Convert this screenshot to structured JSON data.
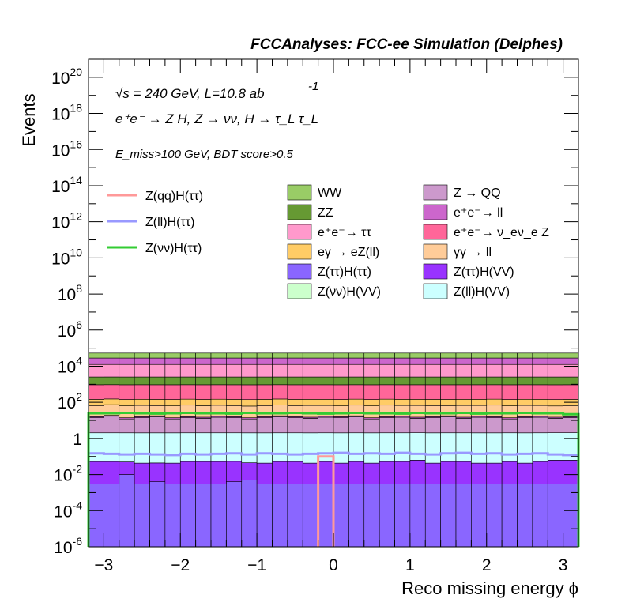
{
  "header": {
    "title": "FCCAnalyses: FCC-ee Simulation (Delphes)"
  },
  "annotations": {
    "line1": "√s = 240 GeV, L=10.8 ab",
    "line1_exp": "-1",
    "line2": "e⁺e⁻ → Z H, Z → νν, H → τ_L τ_L",
    "line3": "E_miss>100 GeV, BDT score>0.5"
  },
  "chart_data": {
    "type": "bar",
    "stacked": true,
    "histogram": true,
    "xlabel": "Reco missing energy ϕ",
    "ylabel": "Events",
    "xlim": [
      -3.2,
      3.2
    ],
    "ylim": [
      1e-06,
      1e+21
    ],
    "yscale": "log",
    "grid": false,
    "legend_position": "middle",
    "x_ticks": [
      "−3",
      "−2",
      "−1",
      "0",
      "1",
      "2",
      "3"
    ],
    "y_ticks": [
      "10^-6",
      "10^-4",
      "10^-2",
      "1",
      "10^2",
      "10^4",
      "10^6",
      "10^8",
      "10^10",
      "10^12",
      "10^14",
      "10^16",
      "10^18",
      "10^20"
    ],
    "bins": 32,
    "stack_layers": [
      {
        "name": "Z(ττ)H(ττ)",
        "color": "#8a66ff",
        "values": [
          0.003,
          0.003,
          0.01,
          0.003,
          0.004,
          0.003,
          0.003,
          0.003,
          0.003,
          0.004,
          0.005,
          0.003,
          0.003,
          0.003,
          0.003,
          0.003,
          0.003,
          0.003,
          0.003,
          0.003,
          0.003,
          0.003,
          0.003,
          0.003,
          0.003,
          0.003,
          0.003,
          0.003,
          0.003,
          0.003,
          0.003,
          0.003
        ]
      },
      {
        "name": "Z(ττ)H(VV)",
        "color": "#9933ff",
        "values": [
          0.05,
          0.05,
          0.04,
          0.04,
          0.04,
          0.04,
          0.05,
          0.05,
          0.05,
          0.05,
          0.04,
          0.04,
          0.05,
          0.05,
          0.04,
          0.05,
          0.04,
          0.05,
          0.04,
          0.05,
          0.05,
          0.06,
          0.04,
          0.05,
          0.05,
          0.04,
          0.04,
          0.05,
          0.04,
          0.05,
          0.06,
          0.06
        ]
      },
      {
        "name": "Z(ll)H(VV)",
        "color": "#ccffff",
        "values": [
          2,
          2,
          2,
          2,
          2,
          2,
          2,
          2,
          2,
          2,
          2,
          2,
          2,
          2,
          2,
          2,
          2,
          2,
          2,
          2,
          2,
          2,
          2,
          2,
          2,
          2,
          2,
          2,
          2,
          2,
          2,
          2
        ]
      },
      {
        "name": "Z → QQ",
        "color": "#cc99cc",
        "values": [
          12,
          15,
          10,
          12,
          14,
          10,
          12,
          11,
          13,
          12,
          10,
          12,
          14,
          12,
          11,
          13,
          12,
          14,
          10,
          12,
          13,
          11,
          12,
          14,
          11,
          13,
          12,
          10,
          12,
          13,
          11,
          12
        ]
      },
      {
        "name": "e⁺e⁻ → ll",
        "color": "#cc66cc",
        "values": [
          2,
          2,
          2,
          2,
          2,
          2,
          2,
          2,
          2,
          2,
          2,
          2,
          2,
          2,
          2,
          2,
          2,
          2,
          2,
          2,
          2,
          2,
          2,
          2,
          2,
          2,
          2,
          2,
          2,
          2,
          2,
          2
        ]
      },
      {
        "name": "γγ → ll",
        "color": "#ffcc99",
        "values": [
          50,
          55,
          50,
          52,
          48,
          50,
          54,
          50,
          52,
          50,
          48,
          50,
          55,
          50,
          52,
          50,
          48,
          52,
          50,
          54,
          50,
          52,
          50,
          48,
          52,
          50,
          54,
          50,
          52,
          50,
          48,
          50
        ]
      },
      {
        "name": "eγ → eZ(ll)",
        "color": "#ffcc66",
        "values": [
          80,
          80,
          80,
          80,
          80,
          80,
          80,
          80,
          80,
          80,
          80,
          80,
          80,
          80,
          80,
          80,
          80,
          80,
          80,
          80,
          80,
          80,
          80,
          80,
          80,
          80,
          80,
          80,
          80,
          80,
          80,
          80
        ]
      },
      {
        "name": "e⁺e⁻ → ν_eν_e Z",
        "color": "#ff6699",
        "values": [
          800,
          800,
          800,
          800,
          800,
          800,
          800,
          800,
          800,
          800,
          800,
          800,
          800,
          800,
          800,
          800,
          800,
          800,
          800,
          800,
          800,
          800,
          800,
          800,
          800,
          800,
          800,
          800,
          800,
          800,
          800,
          800
        ]
      },
      {
        "name": "ZZ",
        "color": "#669933",
        "values": [
          1600,
          1600,
          1600,
          1600,
          1600,
          1600,
          1600,
          1600,
          1600,
          1600,
          1600,
          1600,
          1600,
          1600,
          1600,
          1600,
          1600,
          1600,
          1600,
          1600,
          1600,
          1600,
          1600,
          1600,
          1600,
          1600,
          1600,
          1600,
          1600,
          1600,
          1600,
          1600
        ]
      },
      {
        "name": "e⁺e⁻ → ττ",
        "color": "#ff99cc",
        "values": [
          10000,
          10000,
          10000,
          10000,
          10000,
          10000,
          10000,
          10000,
          10000,
          10000,
          10000,
          10000,
          10000,
          10000,
          10000,
          10000,
          10000,
          10000,
          10000,
          10000,
          10000,
          10000,
          10000,
          10000,
          10000,
          10000,
          10000,
          10000,
          10000,
          10000,
          10000,
          10000
        ]
      },
      {
        "name": "e⁺e⁻ → ll",
        "color": "#cc66cc",
        "values": [
          16000,
          16000,
          16000,
          16000,
          16000,
          16000,
          16000,
          16000,
          16000,
          16000,
          16000,
          16000,
          16000,
          16000,
          16000,
          16000,
          16000,
          16000,
          16000,
          16000,
          16000,
          16000,
          16000,
          16000,
          16000,
          16000,
          16000,
          16000,
          16000,
          16000,
          16000,
          16000
        ]
      },
      {
        "name": "WW",
        "color": "#99cc66",
        "values": [
          25000,
          25000,
          25000,
          25000,
          25000,
          25000,
          25000,
          25000,
          25000,
          25000,
          25000,
          25000,
          25000,
          25000,
          25000,
          25000,
          25000,
          25000,
          25000,
          25000,
          25000,
          25000,
          25000,
          25000,
          25000,
          25000,
          25000,
          25000,
          25000,
          25000,
          25000,
          25000
        ]
      }
    ],
    "lines": [
      {
        "name": "Z(qq)H(ττ)",
        "color": "#ff9999",
        "values": [
          0,
          0,
          0,
          0,
          0,
          0,
          0,
          0,
          0,
          0,
          0,
          0,
          0,
          0,
          0,
          0.1,
          0,
          0,
          0,
          0,
          0,
          0,
          0,
          0,
          0,
          0,
          0,
          0,
          0,
          0,
          0,
          0
        ]
      },
      {
        "name": "Z(ll)H(ττ)",
        "color": "#9999ff",
        "values": [
          0.15,
          0.14,
          0.13,
          0.14,
          0.13,
          0.12,
          0.14,
          0.13,
          0.14,
          0.15,
          0.13,
          0.15,
          0.14,
          0.13,
          0.14,
          0.15,
          0.16,
          0.14,
          0.15,
          0.14,
          0.16,
          0.14,
          0.13,
          0.15,
          0.16,
          0.14,
          0.15,
          0.13,
          0.14,
          0.15,
          0.13,
          0.12
        ]
      },
      {
        "name": "Z(νν)H(ττ)",
        "color": "#33cc33",
        "values": [
          25,
          25,
          26,
          25,
          24,
          25,
          26,
          25,
          25,
          24,
          26,
          25,
          25,
          26,
          25,
          24,
          25,
          26,
          25,
          25,
          24,
          26,
          25,
          25,
          26,
          24,
          25,
          25,
          26,
          25,
          25,
          22
        ]
      }
    ],
    "legend": [
      {
        "label": "Z(qq)H(ττ)",
        "kind": "line",
        "color": "#ff9999"
      },
      {
        "label": "Z(ll)H(ττ)",
        "kind": "line",
        "color": "#9999ff"
      },
      {
        "label": "Z(νν)H(ττ)",
        "kind": "line",
        "color": "#33cc33"
      },
      {
        "label": "WW",
        "kind": "box",
        "color": "#99cc66"
      },
      {
        "label": "ZZ",
        "kind": "box",
        "color": "#669933"
      },
      {
        "label": "e⁺e⁻→ ττ",
        "kind": "box",
        "color": "#ff99cc"
      },
      {
        "label": "eγ → eZ(ll)",
        "kind": "box",
        "color": "#ffcc66"
      },
      {
        "label": "Z(ττ)H(ττ)",
        "kind": "box",
        "color": "#8a66ff"
      },
      {
        "label": "Z(νν)H(VV)",
        "kind": "box",
        "color": "#ccffcc"
      },
      {
        "label": "Z → QQ",
        "kind": "box",
        "color": "#cc99cc"
      },
      {
        "label": "e⁺e⁻→ ll",
        "kind": "box",
        "color": "#cc66cc"
      },
      {
        "label": "e⁺e⁻→ ν_eν_e Z",
        "kind": "box",
        "color": "#ff6699"
      },
      {
        "label": "γγ → ll",
        "kind": "box",
        "color": "#ffcc99"
      },
      {
        "label": "Z(ττ)H(VV)",
        "kind": "box",
        "color": "#9933ff"
      },
      {
        "label": "Z(ll)H(VV)",
        "kind": "box",
        "color": "#ccffff"
      }
    ]
  }
}
